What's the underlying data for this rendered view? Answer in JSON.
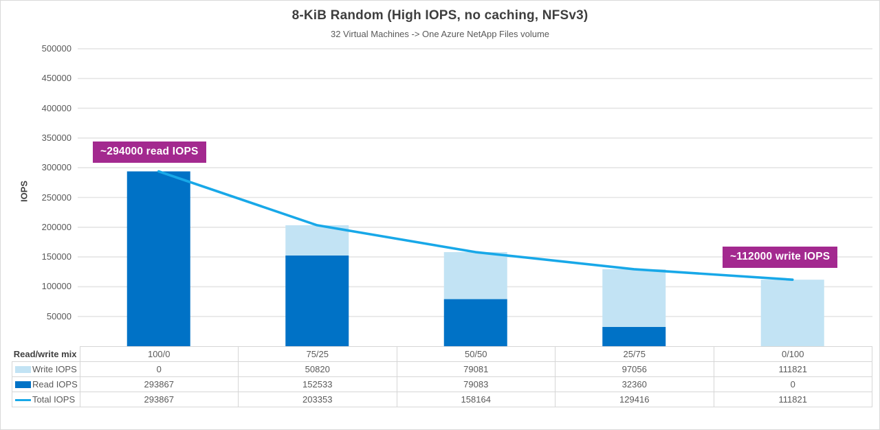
{
  "title": "8-KiB Random (High IOPS, no caching, NFSv3)",
  "subtitle": "32 Virtual Machines -> One Azure NetApp Files volume",
  "colors": {
    "read_bar": "#0072C6",
    "write_bar": "#C2E3F4",
    "total_line": "#18A8E8",
    "annotation_bg": "#A3298F",
    "annotation_text": "#FFFFFF",
    "gridline": "#E4E4E4",
    "table_border": "#D6D6D6",
    "axis_text": "#595959",
    "title_text": "#3E3E3E"
  },
  "y_axis": {
    "label": "IOPS",
    "ticks": [
      500000,
      450000,
      400000,
      350000,
      300000,
      250000,
      200000,
      150000,
      100000,
      50000
    ]
  },
  "annotations": [
    {
      "text": "~294000 read IOPS"
    },
    {
      "text": "~112000 write IOPS"
    }
  ],
  "chart_data": {
    "type": "combo-stacked-bar-line",
    "title": "8-KiB Random (High IOPS, no caching, NFSv3)",
    "subtitle": "32 Virtual Machines -> One Azure NetApp Files volume",
    "categories": [
      "100/0",
      "75/25",
      "50/50",
      "25/75",
      "0/100"
    ],
    "series": [
      {
        "name": "Write IOPS",
        "type": "bar",
        "stack": "top",
        "color": "#C2E3F4",
        "values": [
          0,
          50820,
          79081,
          97056,
          111821
        ]
      },
      {
        "name": "Read IOPS",
        "type": "bar",
        "stack": "bottom",
        "color": "#0072C6",
        "values": [
          293867,
          152533,
          79083,
          32360,
          0
        ]
      },
      {
        "name": "Total IOPS",
        "type": "line",
        "color": "#18A8E8",
        "values": [
          293867,
          203353,
          158164,
          129416,
          111821
        ]
      }
    ],
    "xlabel": "Read/write mix",
    "ylabel": "IOPS",
    "ylim": [
      0,
      500000
    ],
    "y_tick_interval": 50000,
    "grid": "horizontal",
    "legend_position": "table-left"
  },
  "table": {
    "row_header": "Read/write mix"
  }
}
